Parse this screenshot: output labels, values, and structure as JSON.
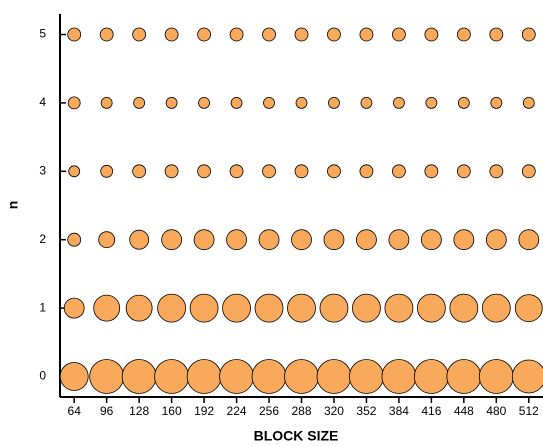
{
  "chart_data": {
    "type": "bubble",
    "xlabel": "BLOCK SIZE",
    "ylabel": "n",
    "x": [
      64,
      96,
      128,
      160,
      192,
      224,
      256,
      288,
      320,
      352,
      384,
      416,
      448,
      480,
      512
    ],
    "color": "#f8a95c",
    "series": [
      {
        "values": [
          0,
          0,
          0,
          0,
          0,
          0,
          0,
          0,
          0,
          0,
          0,
          0,
          0,
          0,
          0
        ],
        "sizes": [
          28,
          34,
          34,
          34,
          34,
          34,
          34,
          34,
          34,
          34,
          34,
          34,
          34,
          34,
          33
        ]
      },
      {
        "values": [
          1,
          1,
          1,
          1,
          1,
          1,
          1,
          1,
          1,
          1,
          1,
          1,
          1,
          1,
          1
        ],
        "sizes": [
          20,
          26,
          26,
          28,
          28,
          28,
          28,
          28,
          28,
          28,
          28,
          28,
          28,
          28,
          27
        ]
      },
      {
        "values": [
          2,
          2,
          2,
          2,
          2,
          2,
          2,
          2,
          2,
          2,
          2,
          2,
          2,
          2,
          2
        ],
        "sizes": [
          13,
          16,
          19,
          20,
          20,
          20,
          20,
          20,
          20,
          20,
          20,
          20,
          20,
          20,
          20
        ]
      },
      {
        "values": [
          3,
          3,
          3,
          3,
          3,
          3,
          3,
          3,
          3,
          3,
          3,
          3,
          3,
          3,
          3
        ],
        "sizes": [
          11,
          12,
          13,
          13,
          13,
          13,
          13,
          13,
          13,
          13,
          13,
          13,
          13,
          13,
          13
        ]
      },
      {
        "values": [
          4,
          4,
          4,
          4,
          4,
          4,
          4,
          4,
          4,
          4,
          4,
          4,
          4,
          4,
          4
        ],
        "sizes": [
          12,
          11,
          11,
          11,
          11,
          11,
          11,
          11,
          11,
          11,
          11,
          11,
          11,
          11,
          11
        ]
      },
      {
        "values": [
          5,
          5,
          5,
          5,
          5,
          5,
          5,
          5,
          5,
          5,
          5,
          5,
          5,
          5,
          5
        ],
        "sizes": [
          13,
          13,
          13,
          13,
          13,
          13,
          13,
          13,
          13,
          13,
          13,
          13,
          13,
          13,
          13
        ]
      }
    ],
    "xlim": [
      50,
      526
    ],
    "ylim": [
      -0.3,
      5.3
    ],
    "xticks": [
      64,
      96,
      128,
      160,
      192,
      224,
      256,
      288,
      320,
      352,
      384,
      416,
      448,
      480,
      512
    ],
    "yticks": [
      0,
      1,
      2,
      3,
      4,
      5
    ]
  }
}
